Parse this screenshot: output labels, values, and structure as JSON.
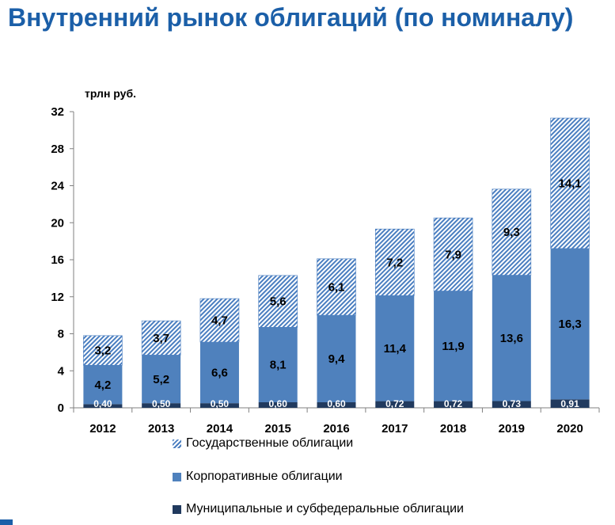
{
  "title": "Внутренний рынок облигаций (по номиналу)",
  "chart_data": {
    "type": "bar",
    "stacked": true,
    "ylabel": "трлн руб.",
    "ylim": [
      0,
      32
    ],
    "yticks": [
      0,
      4,
      8,
      12,
      16,
      20,
      24,
      28,
      32
    ],
    "categories": [
      "2012",
      "2013",
      "2014",
      "2015",
      "2016",
      "2017",
      "2018",
      "2019",
      "2020"
    ],
    "series": [
      {
        "name": "Муниципальные и субфедеральные облигации",
        "color": "#213a5e",
        "values": [
          0.4,
          0.5,
          0.5,
          0.6,
          0.6,
          0.72,
          0.72,
          0.73,
          0.91
        ],
        "labels": [
          "0,40",
          "0,50",
          "0,50",
          "0,60",
          "0,60",
          "0,72",
          "0,72",
          "0,73",
          "0,91"
        ]
      },
      {
        "name": "Корпоративные облигации",
        "color": "#4f81bd",
        "values": [
          4.2,
          5.2,
          6.6,
          8.1,
          9.4,
          11.4,
          11.9,
          13.6,
          16.3
        ],
        "labels": [
          "4,2",
          "5,2",
          "6,6",
          "8,1",
          "9,4",
          "11,4",
          "11,9",
          "13,6",
          "16,3"
        ]
      },
      {
        "name": "Государственные облигации",
        "color": "#4a7ec0",
        "pattern": "hatched",
        "values": [
          3.2,
          3.7,
          4.7,
          5.6,
          6.1,
          7.2,
          7.9,
          9.3,
          14.1
        ],
        "labels": [
          "3,2",
          "3,7",
          "4,7",
          "5,6",
          "6,1",
          "7,2",
          "7,9",
          "9,3",
          "14,1"
        ]
      }
    ],
    "legend_position": "bottom"
  },
  "legend": {
    "gov": "Государственные облигации",
    "corp": "Корпоративные облигации",
    "mun": "Муниципальные и субфедеральные облигации"
  }
}
